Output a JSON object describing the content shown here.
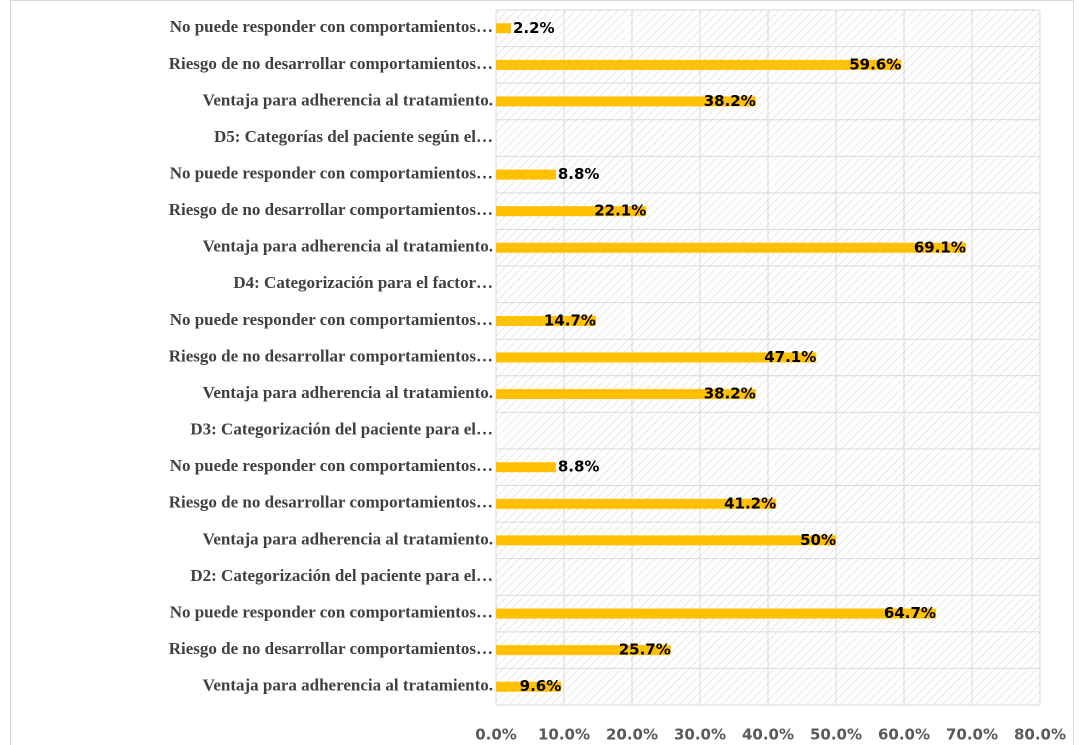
{
  "chart_data": {
    "type": "bar",
    "orientation": "horizontal",
    "categories": [
      "No puede responder con comportamientos…",
      "Riesgo de no desarrollar comportamientos…",
      "Ventaja para adherencia al tratamiento.",
      "D5: Categorías del paciente según el…",
      "No puede responder con comportamientos…",
      "Riesgo de no desarrollar comportamientos…",
      "Ventaja para adherencia al tratamiento.",
      "D4: Categorización para el factor…",
      "No puede responder con comportamientos…",
      "Riesgo de no desarrollar comportamientos…",
      "Ventaja para adherencia al tratamiento.",
      "D3: Categorización del paciente para el…",
      "No puede responder con comportamientos…",
      "Riesgo de no desarrollar comportamientos…",
      "Ventaja para adherencia al tratamiento.",
      "D2: Categorización del paciente para el…",
      "No puede responder con comportamientos…",
      "Riesgo de no desarrollar comportamientos…",
      "Ventaja para adherencia al tratamiento."
    ],
    "values": [
      2.2,
      59.6,
      38.2,
      null,
      8.8,
      22.1,
      69.1,
      null,
      14.7,
      47.1,
      38.2,
      null,
      8.8,
      41.2,
      50,
      null,
      64.7,
      25.7,
      9.6
    ],
    "value_labels": [
      "2.2%",
      "59.6%",
      "38.2%",
      null,
      "8.8%",
      "22.1%",
      "69.1%",
      null,
      "14.7%",
      "47.1%",
      "38.2%",
      null,
      "8.8%",
      "41.2%",
      "50%",
      null,
      "64.7%",
      "25.7%",
      "9.6%"
    ],
    "color": "#ffc000",
    "xlim": [
      0,
      80
    ],
    "xticks": [
      {
        "value": 0,
        "label": "0.0%"
      },
      {
        "value": 10,
        "label": "10.0%"
      },
      {
        "value": 20,
        "label": "20.0%"
      },
      {
        "value": 30,
        "label": "30.0%"
      },
      {
        "value": 40,
        "label": "40.0%"
      },
      {
        "value": 50,
        "label": "50.0%"
      },
      {
        "value": 60,
        "label": "60.0%"
      },
      {
        "value": 70,
        "label": "70.0%"
      },
      {
        "value": 80,
        "label": "80.0%"
      }
    ],
    "grid": true
  }
}
